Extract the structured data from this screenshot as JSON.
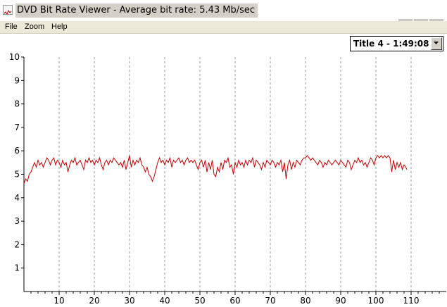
{
  "window": {
    "title": "DVD Bit Rate Viewer - Average bit rate: 5.43 Mb/sec",
    "icon": "chart-app-icon"
  },
  "menu": {
    "items": [
      "File",
      "Zoom",
      "Help"
    ]
  },
  "title_selector": {
    "selected": "Title 4 - 1:49:08"
  },
  "colors": {
    "line": "#c00000",
    "grid": "#9a9a9a"
  },
  "chart_data": {
    "type": "line",
    "ylim": [
      0,
      10
    ],
    "xlim": [
      0,
      120
    ],
    "yticks": [
      1,
      2,
      3,
      4,
      5,
      6,
      7,
      8,
      9,
      10
    ],
    "xticks": [
      10,
      20,
      30,
      40,
      50,
      60,
      70,
      80,
      90,
      100,
      110
    ],
    "grid": "vertical dashed",
    "series": [
      {
        "values": [
          [
            0,
            4.6
          ],
          [
            0.5,
            4.8
          ],
          [
            1,
            4.7
          ],
          [
            1.5,
            5.0
          ],
          [
            2,
            5.1
          ],
          [
            2.5,
            5.3
          ],
          [
            3,
            5.5
          ],
          [
            3.5,
            5.3
          ],
          [
            4,
            5.6
          ],
          [
            4.5,
            5.4
          ],
          [
            5,
            5.5
          ],
          [
            5.5,
            5.3
          ],
          [
            6,
            5.5
          ],
          [
            6.5,
            5.7
          ],
          [
            7,
            5.6
          ],
          [
            7.5,
            5.4
          ],
          [
            8,
            5.6
          ],
          [
            8.5,
            5.7
          ],
          [
            9,
            5.4
          ],
          [
            9.5,
            5.6
          ],
          [
            10,
            5.5
          ],
          [
            10.5,
            5.3
          ],
          [
            11,
            5.6
          ],
          [
            11.5,
            5.4
          ],
          [
            12,
            5.5
          ],
          [
            12.5,
            5.1
          ],
          [
            13,
            5.4
          ],
          [
            13.5,
            5.6
          ],
          [
            14,
            5.5
          ],
          [
            14.5,
            5.7
          ],
          [
            15,
            5.4
          ],
          [
            15.5,
            5.5
          ],
          [
            16,
            5.6
          ],
          [
            16.5,
            5.4
          ],
          [
            17,
            5.2
          ],
          [
            17.5,
            5.6
          ],
          [
            18,
            5.5
          ],
          [
            18.5,
            5.7
          ],
          [
            19,
            5.5
          ],
          [
            19.5,
            5.6
          ],
          [
            20,
            5.4
          ],
          [
            20.5,
            5.6
          ],
          [
            21,
            5.5
          ],
          [
            21.5,
            5.7
          ],
          [
            22,
            5.4
          ],
          [
            22.5,
            5.2
          ],
          [
            23,
            5.5
          ],
          [
            23.5,
            5.6
          ],
          [
            24,
            5.4
          ],
          [
            24.5,
            5.6
          ],
          [
            25,
            5.5
          ],
          [
            25.5,
            5.7
          ],
          [
            26,
            5.6
          ],
          [
            26.5,
            5.5
          ],
          [
            27,
            5.4
          ],
          [
            27.5,
            5.5
          ],
          [
            28,
            5.3
          ],
          [
            28.5,
            5.6
          ],
          [
            29,
            5.2
          ],
          [
            29.5,
            5.5
          ],
          [
            30,
            5.8
          ],
          [
            30.5,
            5.3
          ],
          [
            31,
            5.6
          ],
          [
            31.5,
            5.4
          ],
          [
            32,
            5.6
          ],
          [
            32.5,
            5.5
          ],
          [
            33,
            5.7
          ],
          [
            33.5,
            5.4
          ],
          [
            34,
            5.3
          ],
          [
            34.5,
            5.1
          ],
          [
            35,
            5.3
          ],
          [
            35.5,
            5.0
          ],
          [
            36,
            4.9
          ],
          [
            36.5,
            4.7
          ],
          [
            37,
            4.9
          ],
          [
            37.5,
            5.2
          ],
          [
            38,
            5.5
          ],
          [
            38.5,
            5.7
          ],
          [
            39,
            5.5
          ],
          [
            39.5,
            5.6
          ],
          [
            40,
            5.4
          ],
          [
            40.5,
            5.6
          ],
          [
            41,
            5.5
          ],
          [
            41.5,
            5.7
          ],
          [
            42,
            5.3
          ],
          [
            42.5,
            5.6
          ],
          [
            43,
            5.5
          ],
          [
            43.5,
            5.6
          ],
          [
            44,
            5.7
          ],
          [
            44.5,
            5.5
          ],
          [
            45,
            5.6
          ],
          [
            45.5,
            5.4
          ],
          [
            46,
            5.6
          ],
          [
            46.5,
            5.7
          ],
          [
            47,
            5.5
          ],
          [
            47.5,
            5.6
          ],
          [
            48,
            5.5
          ],
          [
            48.5,
            5.6
          ],
          [
            49,
            5.4
          ],
          [
            49.5,
            5.2
          ],
          [
            50,
            5.5
          ],
          [
            50.5,
            5.6
          ],
          [
            51,
            5.3
          ],
          [
            51.5,
            5.6
          ],
          [
            52,
            5.1
          ],
          [
            52.5,
            5.5
          ],
          [
            53,
            5.2
          ],
          [
            53.5,
            5.6
          ],
          [
            54,
            5.0
          ],
          [
            54.5,
            4.9
          ],
          [
            55,
            5.3
          ],
          [
            55.5,
            5.1
          ],
          [
            56,
            5.5
          ],
          [
            56.5,
            5.2
          ],
          [
            57,
            5.6
          ],
          [
            57.5,
            5.5
          ],
          [
            58,
            5.7
          ],
          [
            58.5,
            5.3
          ],
          [
            59,
            5.4
          ],
          [
            59.5,
            5.0
          ],
          [
            60,
            5.5
          ],
          [
            60.5,
            5.3
          ],
          [
            61,
            5.6
          ],
          [
            61.5,
            5.4
          ],
          [
            62,
            5.5
          ],
          [
            62.5,
            5.3
          ],
          [
            63,
            5.6
          ],
          [
            63.5,
            5.4
          ],
          [
            64,
            5.6
          ],
          [
            64.5,
            5.5
          ],
          [
            65,
            5.7
          ],
          [
            65.5,
            5.3
          ],
          [
            66,
            5.6
          ],
          [
            66.5,
            5.5
          ],
          [
            67,
            5.4
          ],
          [
            67.5,
            5.2
          ],
          [
            68,
            5.5
          ],
          [
            68.5,
            5.3
          ],
          [
            69,
            5.6
          ],
          [
            69.5,
            5.5
          ],
          [
            70,
            5.4
          ],
          [
            70.5,
            5.6
          ],
          [
            71,
            5.5
          ],
          [
            71.5,
            5.3
          ],
          [
            72,
            5.5
          ],
          [
            72.5,
            5.4
          ],
          [
            73,
            5.6
          ],
          [
            73.5,
            5.1
          ],
          [
            74,
            5.5
          ],
          [
            74.5,
            4.8
          ],
          [
            75,
            5.4
          ],
          [
            75.5,
            5.6
          ],
          [
            76,
            5.2
          ],
          [
            76.5,
            5.5
          ],
          [
            77,
            5.3
          ],
          [
            77.5,
            5.6
          ],
          [
            78,
            5.5
          ],
          [
            78.5,
            5.4
          ],
          [
            79,
            5.6
          ],
          [
            79.5,
            5.7
          ],
          [
            80,
            5.7
          ],
          [
            80.5,
            5.8
          ],
          [
            81,
            5.7
          ],
          [
            81.5,
            5.6
          ],
          [
            82,
            5.7
          ],
          [
            82.5,
            5.6
          ],
          [
            83,
            5.5
          ],
          [
            83.5,
            5.4
          ],
          [
            84,
            5.6
          ],
          [
            84.5,
            5.5
          ],
          [
            85,
            5.3
          ],
          [
            85.5,
            5.5
          ],
          [
            86,
            5.4
          ],
          [
            86.5,
            5.6
          ],
          [
            87,
            5.5
          ],
          [
            87.5,
            5.4
          ],
          [
            88,
            5.5
          ],
          [
            88.5,
            5.6
          ],
          [
            89,
            5.5
          ],
          [
            89.5,
            5.4
          ],
          [
            90,
            5.6
          ],
          [
            90.5,
            5.5
          ],
          [
            91,
            5.4
          ],
          [
            91.5,
            5.3
          ],
          [
            92,
            5.6
          ],
          [
            92.5,
            5.5
          ],
          [
            93,
            5.2
          ],
          [
            93.5,
            5.4
          ],
          [
            94,
            5.6
          ],
          [
            94.5,
            5.5
          ],
          [
            95,
            5.7
          ],
          [
            95.5,
            5.5
          ],
          [
            96,
            5.6
          ],
          [
            96.5,
            5.4
          ],
          [
            97,
            5.5
          ],
          [
            97.5,
            5.3
          ],
          [
            98,
            5.5
          ],
          [
            98.5,
            5.7
          ],
          [
            99,
            5.6
          ],
          [
            99.5,
            5.4
          ],
          [
            100,
            5.7
          ],
          [
            100.5,
            5.8
          ],
          [
            101,
            5.7
          ],
          [
            101.5,
            5.8
          ],
          [
            102,
            5.7
          ],
          [
            102.5,
            5.8
          ],
          [
            103,
            5.7
          ],
          [
            103.5,
            5.8
          ],
          [
            104,
            5.7
          ],
          [
            104.5,
            5.1
          ],
          [
            105,
            5.6
          ],
          [
            105.5,
            5.2
          ],
          [
            106,
            5.5
          ],
          [
            106.5,
            5.3
          ],
          [
            107,
            5.5
          ],
          [
            107.5,
            5.2
          ],
          [
            108,
            5.4
          ],
          [
            108.5,
            5.3
          ],
          [
            108.8,
            5.2
          ]
        ]
      }
    ]
  }
}
